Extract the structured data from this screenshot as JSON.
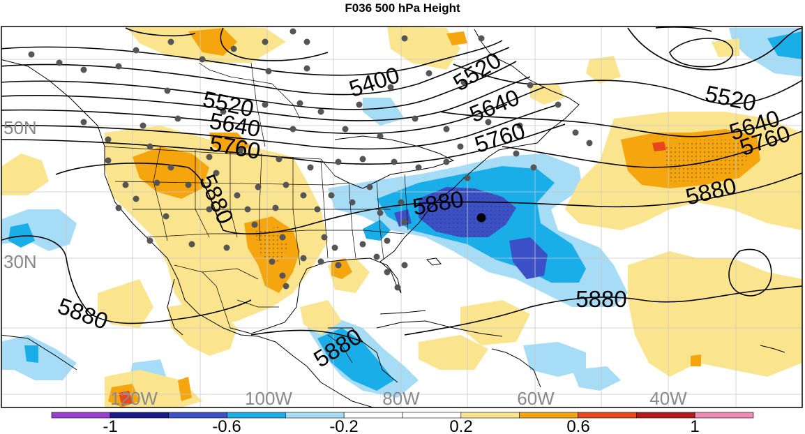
{
  "title": "F036 500 hPa Height",
  "lat_labels": [
    "50N",
    "30N"
  ],
  "lon_labels": [
    "120W",
    "100W",
    "80W",
    "60W",
    "40W"
  ],
  "contour_labels": [
    "5400",
    "5520",
    "5520",
    "5520",
    "5640",
    "5640",
    "5640",
    "5760",
    "5760",
    "5760",
    "5880",
    "5880",
    "5880",
    "5880",
    "5880",
    "5880"
  ],
  "colorbar": {
    "tick_labels": [
      "-1",
      "-0.6",
      "-0.2",
      "0.2",
      "0.6",
      "1"
    ],
    "colors": [
      "#9b3fd0",
      "#1b1b8c",
      "#3b4fc7",
      "#19aee8",
      "#a6dcf6",
      "#ffffff",
      "#ffffff",
      "#fae58e",
      "#f5a50e",
      "#e8461b",
      "#b2191d",
      "#f08ab6"
    ]
  },
  "colors": {
    "warm_light": "#fae58e",
    "warm_mid": "#f5a50e",
    "warm_strong": "#e8461b",
    "cool_light": "#a6dcf6",
    "cool_mid": "#19aee8",
    "cool_strong": "#3b4fc7",
    "station_dot": "#555555"
  }
}
